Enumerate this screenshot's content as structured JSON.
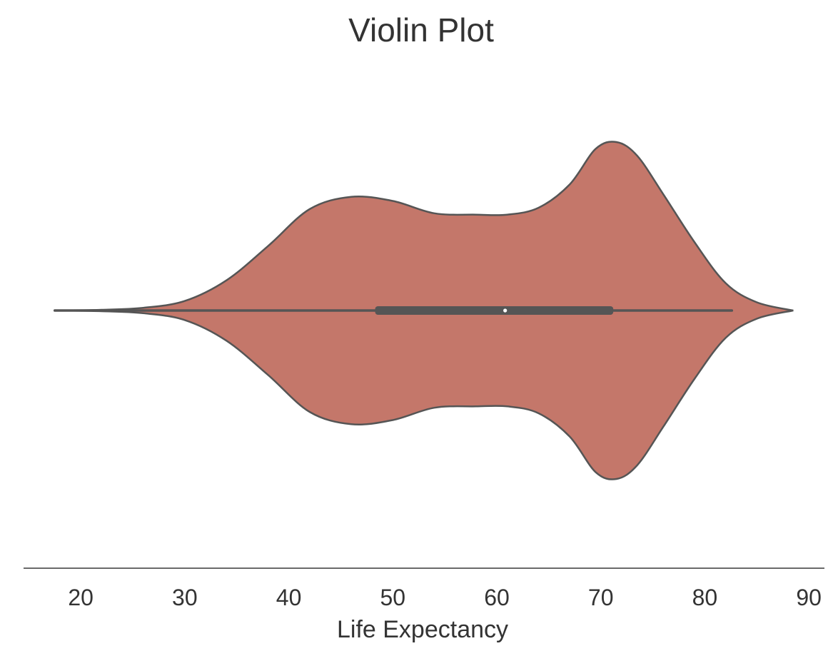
{
  "chart_data": {
    "type": "violin",
    "title": "Violin Plot",
    "xlabel": "Life Expectancy",
    "ylabel": "",
    "xlim": [
      14.5,
      91.5
    ],
    "xticks": [
      20,
      30,
      40,
      50,
      60,
      70,
      80,
      90
    ],
    "grid": false,
    "colors": {
      "fill": "#c4776a",
      "outline": "#555555",
      "median": "#ffffff"
    },
    "violin": {
      "density_profile": [
        [
          17.5,
          0.0
        ],
        [
          22,
          0.005
        ],
        [
          26,
          0.02
        ],
        [
          30,
          0.07
        ],
        [
          34,
          0.22
        ],
        [
          38,
          0.47
        ],
        [
          42,
          0.74
        ],
        [
          46,
          0.83
        ],
        [
          50,
          0.8
        ],
        [
          54,
          0.71
        ],
        [
          58,
          0.7
        ],
        [
          61,
          0.7
        ],
        [
          64,
          0.75
        ],
        [
          67,
          0.92
        ],
        [
          69.5,
          1.18
        ],
        [
          71.5,
          1.23
        ],
        [
          73.5,
          1.13
        ],
        [
          76,
          0.85
        ],
        [
          79,
          0.5
        ],
        [
          82,
          0.2
        ],
        [
          85,
          0.06
        ],
        [
          88.5,
          0.0
        ]
      ],
      "min": 17.5,
      "q1": 48.3,
      "median": 60.8,
      "q3": 71.2,
      "max": 82.6
    }
  }
}
